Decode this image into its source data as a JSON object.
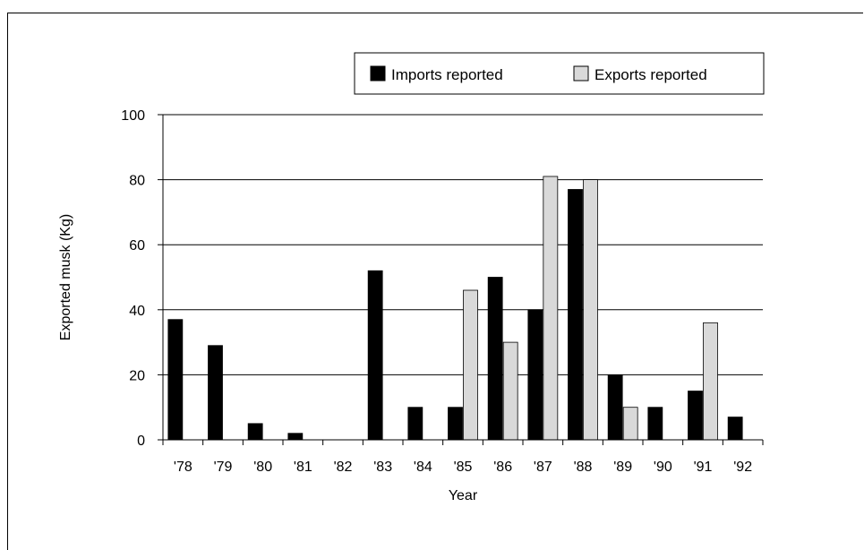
{
  "chart_data": {
    "type": "bar",
    "title": "",
    "xlabel": "Year",
    "ylabel": "Exported musk (Kg)",
    "categories": [
      "'78",
      "'79",
      "'80",
      "'81",
      "'82",
      "'83",
      "'84",
      "'85",
      "'86",
      "'87",
      "'88",
      "'89",
      "'90",
      "'91",
      "'92"
    ],
    "series": [
      {
        "name": "Imports reported",
        "color": "#000000",
        "values": [
          37,
          29,
          5,
          2,
          0,
          52,
          10,
          10,
          50,
          40,
          77,
          20,
          10,
          15,
          7
        ]
      },
      {
        "name": "Exports reported",
        "color": "#d9d9d9",
        "values": [
          0,
          0,
          0,
          0,
          0,
          0,
          0,
          46,
          30,
          81,
          80,
          10,
          0,
          36,
          0
        ]
      }
    ],
    "ylim": [
      0,
      100
    ],
    "yticks": [
      0,
      20,
      40,
      60,
      80,
      100
    ],
    "grid": true,
    "legend": "top-right"
  }
}
